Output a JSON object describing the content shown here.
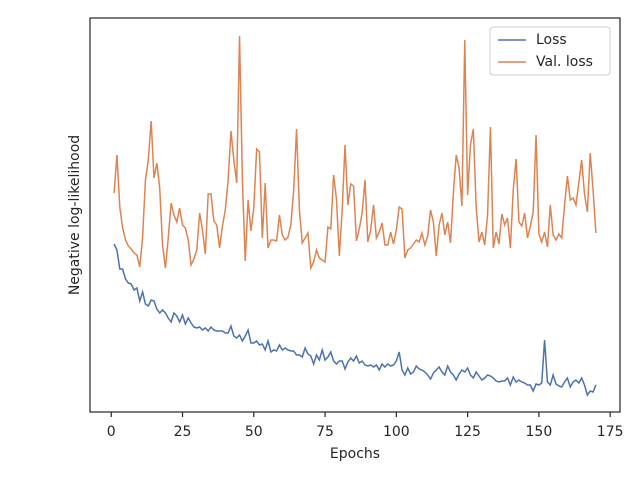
{
  "chart_data": {
    "type": "line",
    "xlabel": "Epochs",
    "ylabel": "Negative log-likelihood",
    "x": [
      1,
      2,
      3,
      4,
      5,
      6,
      7,
      8,
      9,
      10,
      11,
      12,
      13,
      14,
      15,
      16,
      17,
      18,
      19,
      20,
      21,
      22,
      23,
      24,
      25,
      26,
      27,
      28,
      29,
      30,
      31,
      32,
      33,
      34,
      35,
      36,
      37,
      38,
      39,
      40,
      41,
      42,
      43,
      44,
      45,
      46,
      47,
      48,
      49,
      50,
      51,
      52,
      53,
      54,
      55,
      56,
      57,
      58,
      59,
      60,
      61,
      62,
      63,
      64,
      65,
      66,
      67,
      68,
      69,
      70,
      71,
      72,
      73,
      74,
      75,
      76,
      77,
      78,
      79,
      80,
      81,
      82,
      83,
      84,
      85,
      86,
      87,
      88,
      89,
      90,
      91,
      92,
      93,
      94,
      95,
      96,
      97,
      98,
      99,
      100,
      101,
      102,
      103,
      104,
      105,
      106,
      107,
      108,
      109,
      110,
      111,
      112,
      113,
      114,
      115,
      116,
      117,
      118,
      119,
      120,
      121,
      122,
      123,
      124,
      125,
      126,
      127,
      128,
      129,
      130,
      131,
      132,
      133,
      134,
      135,
      136,
      137,
      138,
      139,
      140,
      141,
      142,
      143,
      144,
      145,
      146,
      147,
      148,
      149,
      150,
      151,
      152,
      153,
      154,
      155,
      156,
      157,
      158,
      159,
      160,
      161,
      162,
      163,
      164,
      165,
      166,
      167,
      168,
      169,
      170
    ],
    "series": [
      {
        "name": "Loss",
        "color": "#4c72b0",
        "values": [
          168,
          162,
          143,
          143,
          133,
          129,
          128,
          122,
          124,
          111,
          120,
          108,
          106,
          112,
          111,
          103,
          99,
          102,
          99,
          94,
          90,
          99,
          96,
          90,
          97,
          88,
          94,
          89,
          85,
          84,
          85,
          82,
          84,
          81,
          85,
          82,
          81,
          81,
          81,
          79,
          79,
          86,
          76,
          74,
          77,
          71,
          76,
          82,
          69,
          69,
          71,
          67,
          68,
          62,
          71,
          60,
          62,
          61,
          67,
          62,
          64,
          62,
          61,
          61,
          57,
          57,
          55,
          64,
          58,
          56,
          48,
          57,
          52,
          62,
          52,
          55,
          60,
          51,
          48,
          51,
          51,
          43,
          50,
          54,
          51,
          56,
          49,
          51,
          47,
          46,
          47,
          45,
          47,
          42,
          48,
          45,
          48,
          46,
          47,
          51,
          60,
          42,
          37,
          44,
          38,
          40,
          46,
          43,
          42,
          40,
          37,
          33,
          39,
          42,
          45,
          40,
          37,
          46,
          40,
          37,
          32,
          38,
          42,
          40,
          44,
          37,
          34,
          40,
          36,
          32,
          34,
          37,
          36,
          34,
          31,
          30,
          31,
          31,
          34,
          27,
          35,
          30,
          32,
          30,
          29,
          27,
          27,
          21,
          28,
          27,
          29,
          72,
          30,
          27,
          37,
          28,
          26,
          25,
          30,
          34,
          25,
          30,
          32,
          29,
          34,
          27,
          17,
          21,
          20,
          27
        ]
      },
      {
        "name": "Val. loss",
        "color": "#dd8452",
        "values": [
          219,
          257,
          205,
          184,
          172,
          166,
          163,
          159,
          157,
          145,
          175,
          232,
          252,
          291,
          234,
          249,
          224,
          167,
          144,
          174,
          209,
          197,
          190,
          204,
          187,
          184,
          172,
          147,
          153,
          162,
          199,
          182,
          158,
          218,
          218,
          191,
          187,
          164,
          186,
          202,
          232,
          281,
          252,
          229,
          376,
          232,
          151,
          212,
          181,
          204,
          263,
          260,
          174,
          229,
          164,
          172,
          172,
          171,
          197,
          177,
          172,
          175,
          187,
          222,
          283,
          202,
          169,
          174,
          179,
          144,
          150,
          162,
          154,
          152,
          150,
          185,
          183,
          237,
          213,
          156,
          202,
          267,
          207,
          228,
          226,
          171,
          183,
          199,
          232,
          170,
          182,
          207,
          174,
          180,
          189,
          167,
          167,
          180,
          168,
          182,
          205,
          203,
          154,
          162,
          164,
          168,
          172,
          170,
          179,
          167,
          176,
          202,
          190,
          156,
          187,
          199,
          177,
          190,
          169,
          219,
          257,
          244,
          206,
          372,
          217,
          267,
          283,
          205,
          170,
          180,
          167,
          197,
          285,
          164,
          180,
          168,
          198,
          187,
          194,
          164,
          222,
          253,
          190,
          186,
          199,
          174,
          186,
          200,
          277,
          178,
          170,
          180,
          165,
          207,
          177,
          172,
          178,
          174,
          207,
          236,
          212,
          214,
          207,
          229,
          252,
          218,
          200,
          259,
          222,
          179
        ]
      }
    ],
    "xlim": [
      -7.45,
      178.45
    ],
    "xticks": [
      0,
      25,
      50,
      75,
      100,
      125,
      150,
      175
    ],
    "ylim": [
      0,
      394
    ],
    "legend": "upper right"
  }
}
